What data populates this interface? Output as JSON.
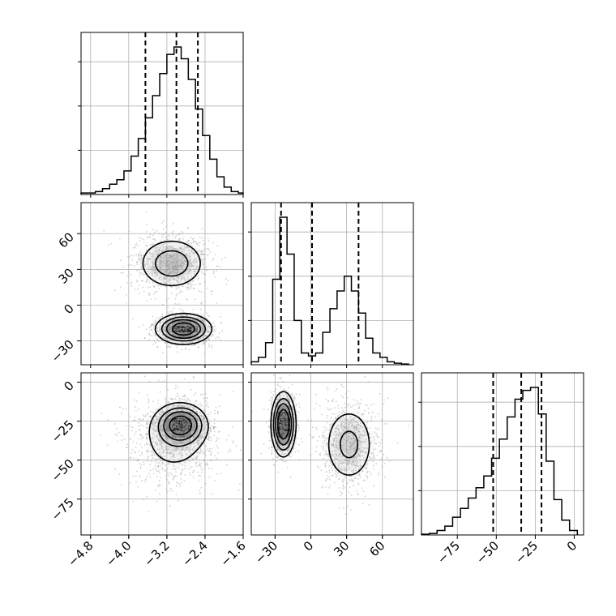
{
  "chart_data": {
    "type": "corner",
    "parameters": [
      {
        "index": 0,
        "range": [
          -5.0,
          -1.6
        ],
        "ticks": [
          -4.8,
          -4.0,
          -3.2,
          -2.4,
          -1.6
        ],
        "tick_labels": [
          "−4.8",
          "−4.0",
          "−3.2",
          "−2.4",
          "−1.6"
        ]
      },
      {
        "index": 1,
        "range": [
          -50,
          86
        ],
        "ticks": [
          -30,
          0,
          30,
          60
        ],
        "tick_labels": [
          "−30",
          "0",
          "30",
          "60"
        ]
      },
      {
        "index": 2,
        "range": [
          -98,
          6
        ],
        "ticks": [
          -75,
          -50,
          -25,
          0
        ],
        "tick_labels": [
          "−75",
          "−50",
          "−25",
          "0"
        ]
      }
    ],
    "diagonal": [
      {
        "param": 0,
        "bin_edges": [
          -5.0,
          -4.85,
          -4.7,
          -4.55,
          -4.4,
          -4.25,
          -4.1,
          -3.95,
          -3.8,
          -3.65,
          -3.5,
          -3.35,
          -3.2,
          -3.05,
          -2.9,
          -2.75,
          -2.6,
          -2.45,
          -2.3,
          -2.15,
          -2.0,
          -1.85,
          -1.7,
          -1.6
        ],
        "counts": [
          0.01,
          0.01,
          0.02,
          0.04,
          0.07,
          0.1,
          0.16,
          0.26,
          0.38,
          0.52,
          0.67,
          0.82,
          0.95,
          1.0,
          0.92,
          0.78,
          0.58,
          0.4,
          0.24,
          0.12,
          0.05,
          0.02,
          0.01
        ],
        "quantiles": [
          -3.65,
          -3.0,
          -2.55
        ]
      },
      {
        "param": 1,
        "bin_edges": [
          -50,
          -44,
          -38,
          -32,
          -26,
          -20,
          -14,
          -8,
          -2,
          4,
          10,
          16,
          22,
          28,
          34,
          40,
          46,
          52,
          58,
          64,
          70,
          76,
          82
        ],
        "counts": [
          0.02,
          0.05,
          0.15,
          0.58,
          1.0,
          0.75,
          0.3,
          0.08,
          0.06,
          0.08,
          0.22,
          0.38,
          0.5,
          0.6,
          0.5,
          0.35,
          0.18,
          0.08,
          0.05,
          0.02,
          0.01,
          0.005
        ],
        "quantiles": [
          -25,
          1,
          40
        ]
      },
      {
        "param": 2,
        "bin_edges": [
          -98,
          -93,
          -88,
          -83,
          -78,
          -73,
          -68,
          -63,
          -58,
          -53,
          -48,
          -43,
          -38,
          -33,
          -28,
          -23,
          -18,
          -13,
          -8,
          -3,
          2
        ],
        "counts": [
          0.005,
          0.01,
          0.03,
          0.06,
          0.12,
          0.18,
          0.25,
          0.32,
          0.4,
          0.52,
          0.65,
          0.8,
          0.92,
          0.98,
          1.0,
          0.82,
          0.5,
          0.24,
          0.1,
          0.03
        ],
        "quantiles": [
          -52,
          -34,
          -21
        ]
      }
    ],
    "pairs": [
      {
        "x_param": 0,
        "y_param": 1,
        "clusters": [
          {
            "center": [
              -3.1,
              35
            ],
            "spread": [
              0.42,
              13
            ],
            "weight": 0.55
          },
          {
            "center": [
              -2.85,
              -20
            ],
            "spread": [
              0.32,
              7
            ],
            "weight": 0.45
          }
        ]
      },
      {
        "x_param": 0,
        "y_param": 2,
        "clusters": [
          {
            "center": [
              -2.9,
              -27
            ],
            "spread": [
              0.28,
              7
            ],
            "weight": 0.45
          },
          {
            "center": [
              -3.05,
              -38
            ],
            "spread": [
              0.5,
              15
            ],
            "weight": 0.55
          }
        ]
      },
      {
        "x_param": 1,
        "y_param": 2,
        "clusters": [
          {
            "center": [
              -23,
              -27
            ],
            "spread": [
              5.5,
              11
            ],
            "weight": 0.45
          },
          {
            "center": [
              32,
              -40
            ],
            "spread": [
              13,
              15
            ],
            "weight": 0.55
          }
        ]
      }
    ],
    "grid": true,
    "contour_levels": [
      0.4,
      0.8,
      1.2,
      1.7
    ],
    "title": "",
    "xlabel": "",
    "ylabel": ""
  }
}
